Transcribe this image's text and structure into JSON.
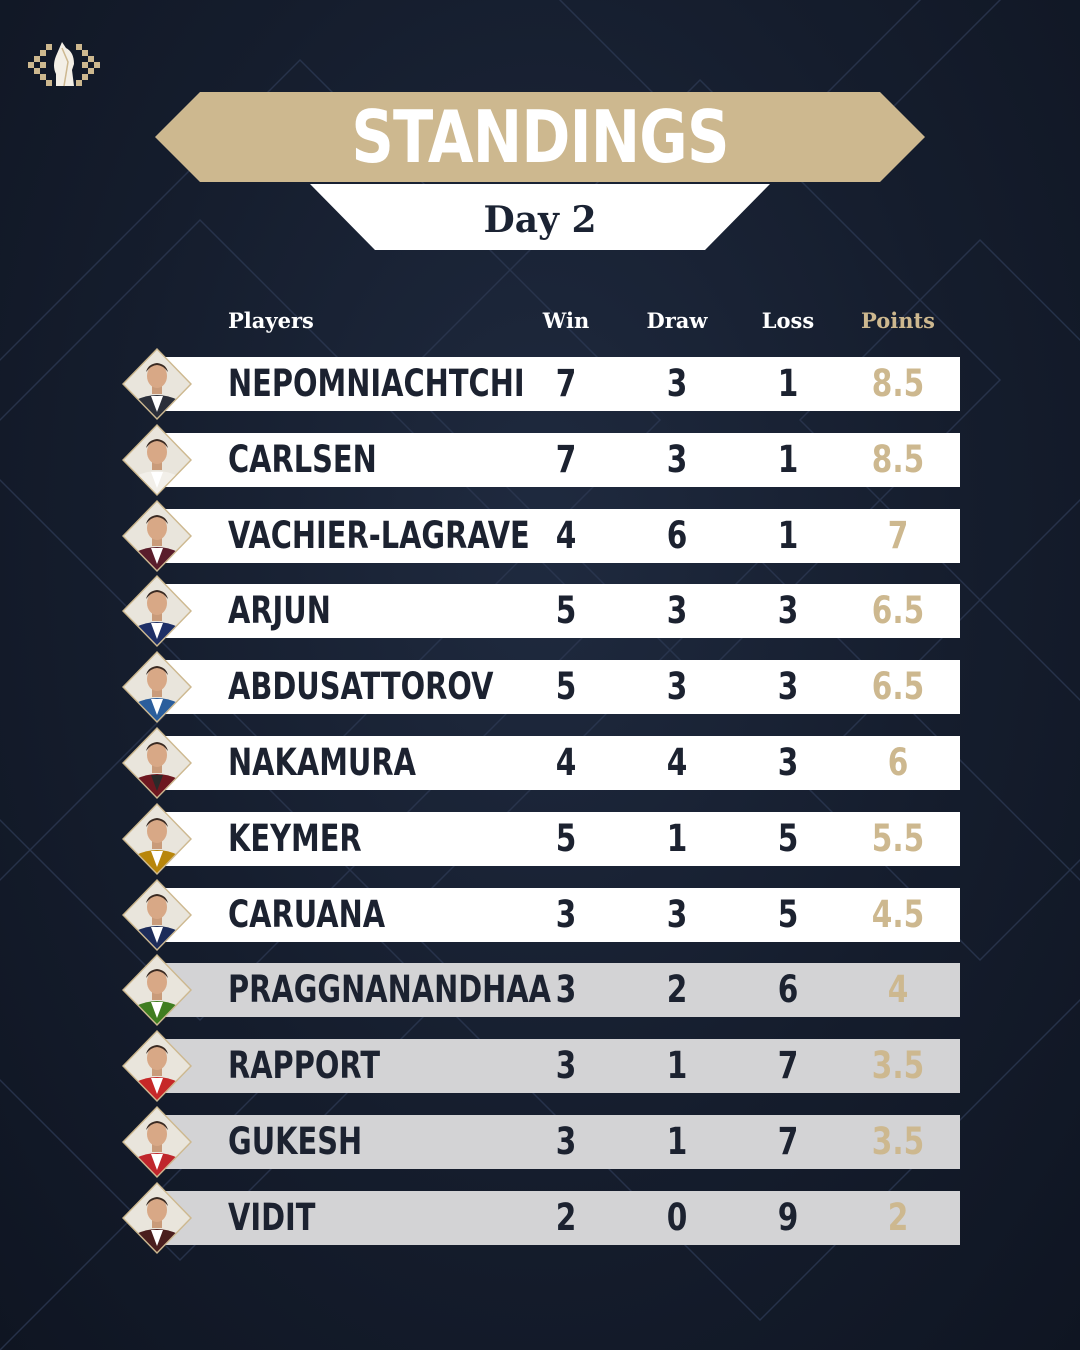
{
  "header": {
    "title": "STANDINGS",
    "subtitle": "Day 2"
  },
  "colors": {
    "background": "#151d2d",
    "gold": "#cdb88f",
    "row_white": "#ffffff",
    "row_grey": "#d3d3d5",
    "text_dark": "#1c2230"
  },
  "logo": {
    "icon": "knight-chessboard-logo"
  },
  "table": {
    "columns": {
      "players": "Players",
      "win": "Win",
      "draw": "Draw",
      "loss": "Loss",
      "points": "Points"
    },
    "rows": [
      {
        "name": "NEPOMNIACHTCHI",
        "win": "7",
        "draw": "3",
        "loss": "1",
        "points": "8.5",
        "jacket": "#2b2f3a",
        "shirt": "#ffffff",
        "highlight": false
      },
      {
        "name": "CARLSEN",
        "win": "7",
        "draw": "3",
        "loss": "1",
        "points": "8.5",
        "jacket": "#f2efe9",
        "shirt": "#ffffff",
        "highlight": false
      },
      {
        "name": "VACHIER-LAGRAVE",
        "win": "4",
        "draw": "6",
        "loss": "1",
        "points": "7",
        "jacket": "#5a1d2b",
        "shirt": "#ffffff",
        "highlight": false
      },
      {
        "name": "ARJUN",
        "win": "5",
        "draw": "3",
        "loss": "3",
        "points": "6.5",
        "jacket": "#1e2f66",
        "shirt": "#ffffff",
        "highlight": false
      },
      {
        "name": "ABDUSATTOROV",
        "win": "5",
        "draw": "3",
        "loss": "3",
        "points": "6.5",
        "jacket": "#2b5e9c",
        "shirt": "#ffffff",
        "highlight": false
      },
      {
        "name": "NAKAMURA",
        "win": "4",
        "draw": "4",
        "loss": "3",
        "points": "6",
        "jacket": "#6e1820",
        "shirt": "#2a2a2a",
        "highlight": false
      },
      {
        "name": "KEYMER",
        "win": "5",
        "draw": "1",
        "loss": "5",
        "points": "5.5",
        "jacket": "#b8860b",
        "shirt": "#ffffff",
        "highlight": false
      },
      {
        "name": "CARUANA",
        "win": "3",
        "draw": "3",
        "loss": "5",
        "points": "4.5",
        "jacket": "#1d2c5a",
        "shirt": "#ffffff",
        "highlight": false
      },
      {
        "name": "PRAGGNANANDHAA",
        "win": "3",
        "draw": "2",
        "loss": "6",
        "points": "4",
        "jacket": "#3f7d20",
        "shirt": "#ffffff",
        "highlight": true
      },
      {
        "name": "RAPPORT",
        "win": "3",
        "draw": "1",
        "loss": "7",
        "points": "3.5",
        "jacket": "#c62828",
        "shirt": "#ffffff",
        "highlight": true
      },
      {
        "name": "GUKESH",
        "win": "3",
        "draw": "1",
        "loss": "7",
        "points": "3.5",
        "jacket": "#c0262c",
        "shirt": "#ffffff",
        "highlight": true
      },
      {
        "name": "VIDIT",
        "win": "2",
        "draw": "0",
        "loss": "9",
        "points": "2",
        "jacket": "#4a1e1e",
        "shirt": "#ffffff",
        "highlight": true
      }
    ]
  }
}
